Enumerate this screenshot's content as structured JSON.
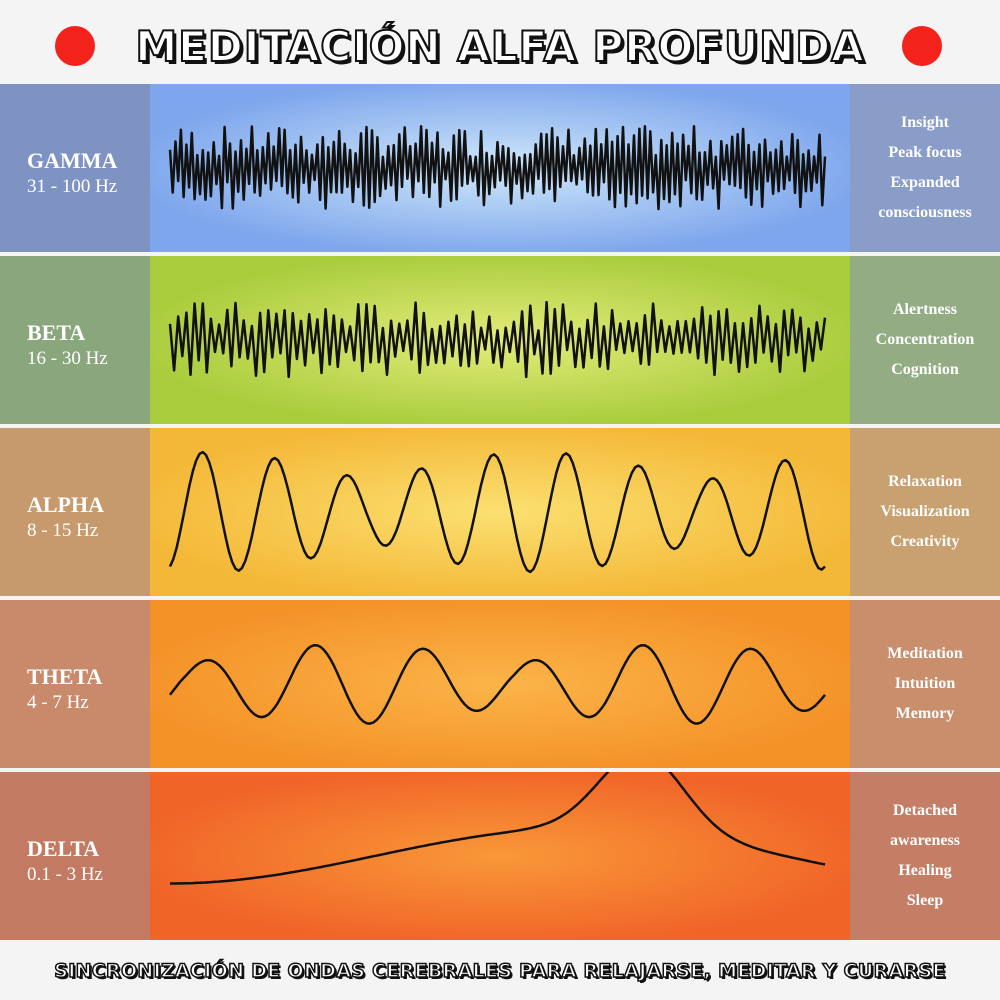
{
  "header": {
    "title": "MEDITACIÓN ALFA PROFUNDA"
  },
  "bands": [
    {
      "name": "GAMMA",
      "freq": "31 - 100 Hz",
      "effects": [
        "Insight",
        "Peak focus",
        "Expanded",
        "consciousness"
      ],
      "left_color": "#7f93c3",
      "right_color": "#8a9dc8",
      "center_colors": [
        "#cfe8fa",
        "#7ea6ec"
      ]
    },
    {
      "name": "BETA",
      "freq": "16 - 30 Hz",
      "effects": [
        "Alertness",
        "Concentration",
        "Cognition"
      ],
      "left_color": "#89a67c",
      "right_color": "#93ac84",
      "center_colors": [
        "#e4ec7a",
        "#a8cc3c"
      ]
    },
    {
      "name": "ALPHA",
      "freq": "8 - 15 Hz",
      "effects": [
        "Relaxation",
        "Visualization",
        "Creativity"
      ],
      "left_color": "#c69a6c",
      "right_color": "#c9a070",
      "center_colors": [
        "#fbe070",
        "#f4b838"
      ]
    },
    {
      "name": "THETA",
      "freq": "4 - 7 Hz",
      "effects": [
        "Meditation",
        "Intuition",
        "Memory"
      ],
      "left_color": "#c88a6a",
      "right_color": "#c98e6c",
      "center_colors": [
        "#fbb448",
        "#f49228"
      ]
    },
    {
      "name": "DELTA",
      "freq": "0.1 - 3 Hz",
      "effects": [
        "Detached",
        "awareness",
        "Healing",
        "Sleep"
      ],
      "left_color": "#c27a62",
      "right_color": "#c47e66",
      "center_colors": [
        "#f99838",
        "#f06428"
      ]
    }
  ],
  "footer": {
    "subtitle": "SINCRONIZACIÓN DE ONDAS CEREBRALES PARA RELAJARSE, MEDITAR Y CURARSE"
  }
}
